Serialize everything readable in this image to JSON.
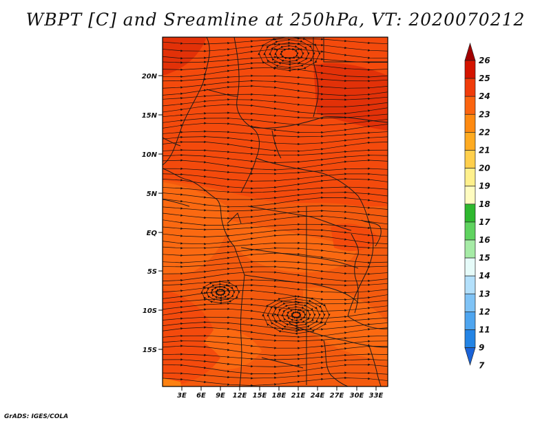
{
  "title": "WBPT [C] and Sreamline at 250hPa, VT: 2020070212",
  "footer": "GrADS: IGES/COLA",
  "map": {
    "lat_ticks": [
      "20N",
      "15N",
      "10N",
      "5N",
      "EQ",
      "5S",
      "10S",
      "15S"
    ],
    "lon_ticks": [
      "3E",
      "6E",
      "9E",
      "12E",
      "15E",
      "18E",
      "21E",
      "24E",
      "27E",
      "30E",
      "33E"
    ],
    "background_color": "#f45a0e",
    "field_colors": {
      "c23": "#fb6a12",
      "c24": "#f34a0d",
      "c25": "#e02f08",
      "c22": "#fd8412"
    }
  },
  "colorbar": {
    "labels": [
      "26",
      "25",
      "24",
      "23",
      "22",
      "21",
      "20",
      "19",
      "18",
      "17",
      "16",
      "15",
      "14",
      "13",
      "12",
      "11",
      "9",
      "7"
    ],
    "colors": [
      "#a20000",
      "#d41400",
      "#f03c0a",
      "#fb640f",
      "#ff8a10",
      "#ffab21",
      "#ffcf4c",
      "#fff08c",
      "#fffcc0",
      "#2eb82e",
      "#5fd35f",
      "#a6eba6",
      "#e6fbf9",
      "#b3e0fb",
      "#7fc3f6",
      "#4ea5ef",
      "#2384e5",
      "#1a63d8"
    ]
  }
}
